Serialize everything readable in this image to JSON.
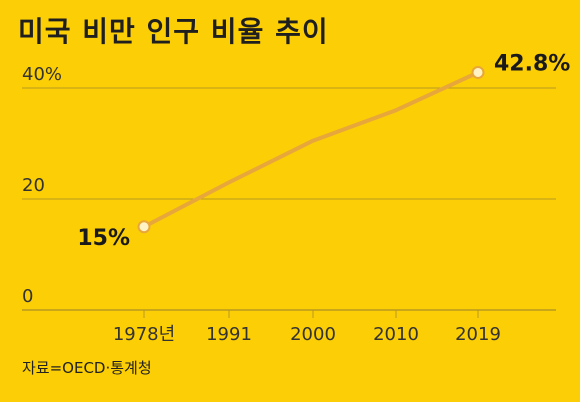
{
  "title": "미국 비만 인구 비율 추이",
  "source": "자료=OECD·통계청",
  "colors": {
    "background": "#FCCE05",
    "line": "#E8A73A",
    "grid": "#B89A1E",
    "text": "#222222"
  },
  "chart_data": {
    "type": "line",
    "title": "미국 비만 인구 비율 추이",
    "x_ticks": [
      "1978년",
      "1991",
      "2000",
      "2010",
      "2019"
    ],
    "y_ticks": [
      "40%",
      "20",
      "0"
    ],
    "ylim": [
      0,
      40
    ],
    "grid": true,
    "series": [
      {
        "x": [
          1978,
          1991,
          2000,
          2010,
          2019
        ],
        "y": [
          15,
          23,
          30.5,
          36,
          42.8
        ]
      }
    ],
    "data_labels": [
      {
        "x": 1978,
        "text": "15%"
      },
      {
        "x": 2019,
        "text": "42.8%"
      }
    ]
  }
}
